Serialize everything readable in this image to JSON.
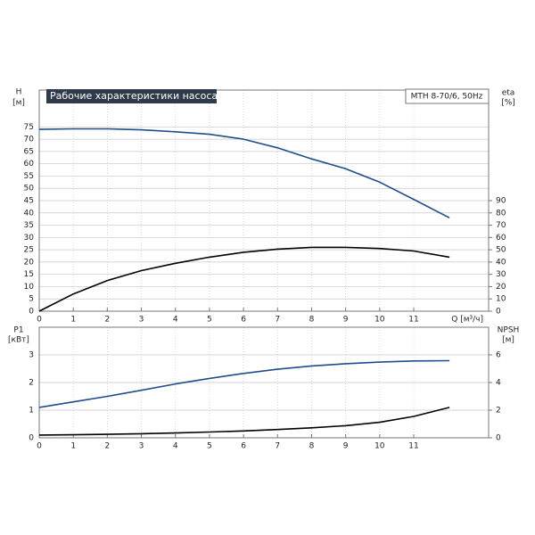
{
  "chart_data": [
    {
      "type": "line",
      "title": "Рабочие характеристики насоса",
      "model": "MTH 8-70/6, 50Hz",
      "ylabel": "H",
      "yunit": "[м]",
      "y2label": "eta",
      "y2unit": "[%]",
      "xlabel": "Q [м³/ч]",
      "x": [
        0,
        1,
        2,
        3,
        4,
        5,
        6,
        7,
        8,
        9,
        10,
        11,
        12.05
      ],
      "xlim": [
        0,
        13.2
      ],
      "xticks": [
        0,
        1,
        2,
        3,
        4,
        5,
        6,
        7,
        8,
        9,
        10,
        11
      ],
      "ylim": [
        0,
        90
      ],
      "yticks": [
        0,
        5,
        10,
        15,
        20,
        25,
        30,
        35,
        40,
        45,
        50,
        55,
        60,
        65,
        70,
        75
      ],
      "y2lim": [
        0,
        180
      ],
      "y2ticks": [
        0,
        10,
        20,
        30,
        40,
        50,
        60,
        70,
        80,
        90
      ],
      "grid": true,
      "series": [
        {
          "name": "H",
          "color": "#1f4e8c",
          "values": [
            74,
            74.2,
            74.2,
            73.8,
            73,
            72,
            70,
            66.5,
            62,
            58,
            52.5,
            45.5,
            38
          ]
        },
        {
          "name": "eta",
          "color": "#000000",
          "axis": "y2",
          "values": [
            0,
            14,
            25,
            33,
            39,
            44,
            48,
            50.5,
            52,
            52,
            51,
            49,
            44
          ]
        }
      ]
    },
    {
      "type": "line",
      "ylabel": "P1",
      "yunit": "[кВт]",
      "y2label": "NPSH",
      "y2unit": "[м]",
      "x": [
        0,
        1,
        2,
        3,
        4,
        5,
        6,
        7,
        8,
        9,
        10,
        11,
        12.05
      ],
      "xlim": [
        0,
        13.2
      ],
      "xticks": [
        0,
        1,
        2,
        3,
        4,
        5,
        6,
        7,
        8,
        9,
        10,
        11
      ],
      "ylim": [
        0,
        4
      ],
      "yticks": [
        0,
        1,
        2,
        3
      ],
      "y2lim": [
        0,
        8
      ],
      "y2ticks": [
        0,
        2,
        4,
        6
      ],
      "grid": true,
      "series": [
        {
          "name": "P1",
          "color": "#1f4e8c",
          "values": [
            1.1,
            1.3,
            1.5,
            1.72,
            1.95,
            2.15,
            2.33,
            2.48,
            2.6,
            2.68,
            2.74,
            2.78,
            2.79
          ]
        },
        {
          "name": "NPSH",
          "color": "#000000",
          "axis": "y2",
          "values": [
            0.2,
            0.22,
            0.25,
            0.3,
            0.35,
            0.42,
            0.5,
            0.6,
            0.72,
            0.88,
            1.12,
            1.55,
            2.2
          ]
        }
      ]
    }
  ]
}
